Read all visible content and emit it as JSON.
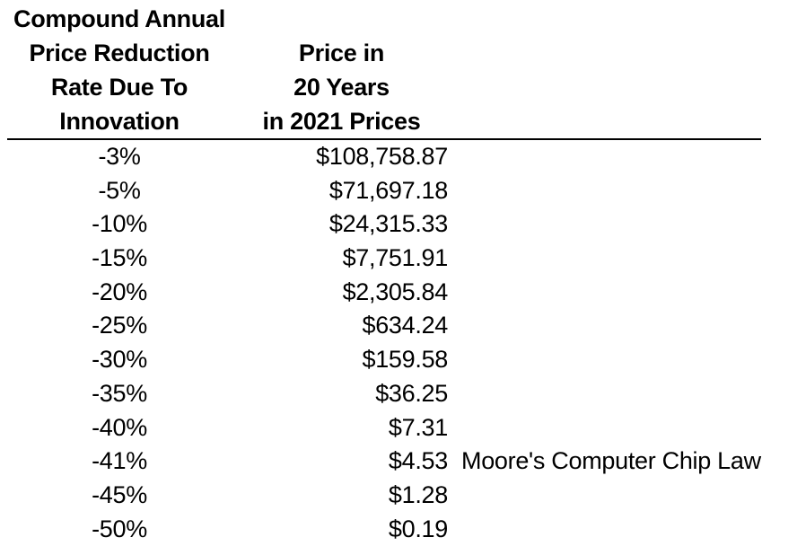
{
  "page": {
    "background": "#ffffff"
  },
  "colors": {
    "text": "#000000",
    "background": "#ffffff",
    "rule": "#000000"
  },
  "table": {
    "header": {
      "col1_lines": [
        "Compound Annual",
        "Price Reduction",
        "Rate Due To",
        "Innovation"
      ],
      "col2_lines": [
        "Price in",
        "20 Years",
        "in 2021 Prices"
      ]
    },
    "rows": [
      {
        "rate": "-3%",
        "price": "$108,758.87",
        "note": ""
      },
      {
        "rate": "-5%",
        "price": "$71,697.18",
        "note": ""
      },
      {
        "rate": "-10%",
        "price": "$24,315.33",
        "note": ""
      },
      {
        "rate": "-15%",
        "price": "$7,751.91",
        "note": ""
      },
      {
        "rate": "-20%",
        "price": "$2,305.84",
        "note": ""
      },
      {
        "rate": "-25%",
        "price": "$634.24",
        "note": ""
      },
      {
        "rate": "-30%",
        "price": "$159.58",
        "note": ""
      },
      {
        "rate": "-35%",
        "price": "$36.25",
        "note": ""
      },
      {
        "rate": "-40%",
        "price": "$7.31",
        "note": ""
      },
      {
        "rate": "-41%",
        "price": "$4.53",
        "note": "Moore's Computer Chip Law"
      },
      {
        "rate": "-45%",
        "price": "$1.28",
        "note": ""
      },
      {
        "rate": "-50%",
        "price": "$0.19",
        "note": ""
      }
    ]
  },
  "chart_data": {
    "type": "table",
    "title": "",
    "columns": [
      "Compound Annual Price Reduction Rate Due To Innovation",
      "Price in 20 Years in 2021 Prices"
    ],
    "categories": [
      "-3%",
      "-5%",
      "-10%",
      "-15%",
      "-20%",
      "-25%",
      "-30%",
      "-35%",
      "-40%",
      "-41%",
      "-45%",
      "-50%"
    ],
    "values": [
      108758.87,
      71697.18,
      24315.33,
      7751.91,
      2305.84,
      634.24,
      159.58,
      36.25,
      7.31,
      4.53,
      1.28,
      0.19
    ],
    "annotations": [
      {
        "row": "-41%",
        "text": "Moore's Computer Chip Law"
      }
    ]
  }
}
